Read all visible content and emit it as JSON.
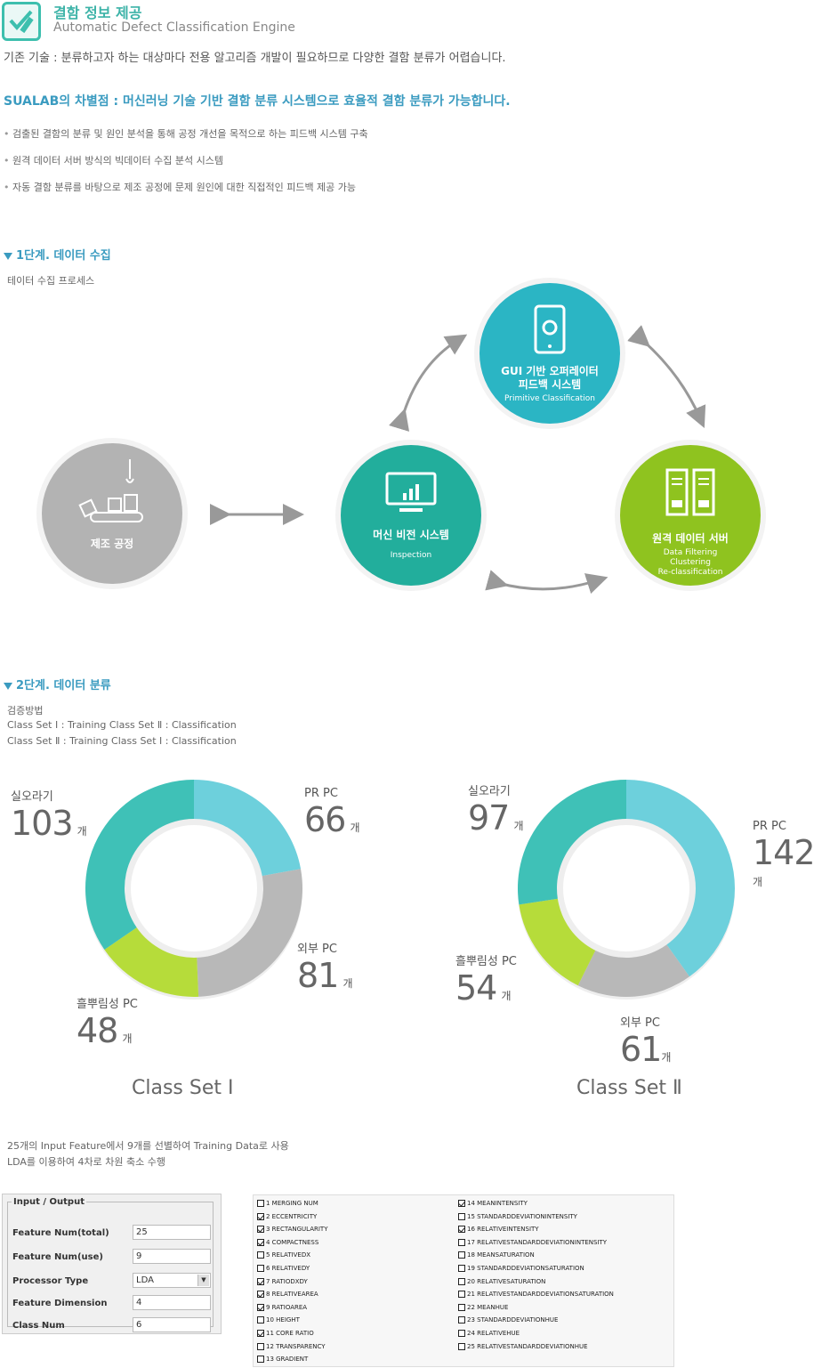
{
  "header": {
    "title_ko": "결함 정보 제공",
    "title_en": "Automatic Defect Classification Engine"
  },
  "existing": "기존 기술 : 분류하고자 하는 대상마다 전용 알고리즘 개발이 필요하므로 다양한 결함 분류가 어렵습니다.",
  "sualab": "SUALAB의 차별점 : 머신러닝 기술 기반 결함 분류 시스템으로 효율적 결함 분류가 가능합니다.",
  "bullets": [
    "검출된 결함의 분류 및 원인 분석을 통해 공정 개선을 목적으로 하는 피드백 시스템 구축",
    "원격 데이터 서버 방식의 빅데이터 수집 분석 시스템",
    "자동 결함 분류를 바탕으로 제조 공정에 문제 원인에 대한 직접적인 피드백 제공 가능"
  ],
  "step1": {
    "title": "1단계. 데이터 수집",
    "subtitle": "테이터 수집 프로세스"
  },
  "nodes": {
    "gui": {
      "title1": "GUI 기반 오퍼레이터",
      "title2": "피드백 시스템",
      "sub": "Primitive Classification",
      "color": "#2bb5c4",
      "icon": "smartphone-gear-icon"
    },
    "manufacturing": {
      "title": "제조 공정",
      "color": "#b3b3b3",
      "icon": "conveyor-icon"
    },
    "vision": {
      "title": "머신 비전 시스템",
      "sub": "Inspection",
      "color": "#22ae9c",
      "icon": "monitor-chart-icon"
    },
    "server": {
      "title": "원격 데이터 서버",
      "sub1": "Data Filtering",
      "sub2": "Clustering",
      "sub3": "Re-classification",
      "color": "#8fc31f",
      "icon": "server-icon"
    }
  },
  "step2": {
    "title": "2단계. 데이터 분류",
    "method": "검증방법",
    "line1": "Class Set Ⅰ : Training Class Set Ⅱ : Classification",
    "line2": "Class Set Ⅱ : Training Class Set Ⅰ : Classification"
  },
  "unit": "개",
  "chart_data": [
    {
      "type": "pie",
      "title": "Class Set Ⅰ",
      "series": [
        {
          "name": "PR PC",
          "value": 66,
          "color": "#6dd0dc"
        },
        {
          "name": "외부 PC",
          "value": 81,
          "color": "#b8b8b8"
        },
        {
          "name": "흘뿌림성 PC",
          "value": 48,
          "color": "#b6dc3a"
        },
        {
          "name": "실오라기",
          "value": 103,
          "color": "#3fc1b7"
        }
      ]
    },
    {
      "type": "pie",
      "title": "Class Set Ⅱ",
      "series": [
        {
          "name": "PR PC",
          "value": 142,
          "color": "#6dd0dc"
        },
        {
          "name": "외부 PC",
          "value": 61,
          "color": "#b8b8b8"
        },
        {
          "name": "흘뿌림성 PC",
          "value": 54,
          "color": "#b6dc3a"
        },
        {
          "name": "실오라기",
          "value": 97,
          "color": "#3fc1b7"
        }
      ]
    }
  ],
  "features_note1": "25개의 Input Feature에서 9개를 선별하여 Training Data로 사용",
  "features_note2": "LDA를 이용하여 4차로 차원 축소 수행",
  "io_panel": {
    "legend": "Input / Output",
    "rows": [
      {
        "label": "Feature Num(total)",
        "value": "25"
      },
      {
        "label": "Feature Num(use)",
        "value": "9"
      },
      {
        "label": "Processor Type",
        "value": "LDA"
      },
      {
        "label": "Feature Dimension",
        "value": "4"
      },
      {
        "label": "Class Num",
        "value": "6"
      }
    ]
  },
  "features_left": [
    {
      "label": "1 MERGING NUM",
      "checked": false
    },
    {
      "label": "2 ECCENTRICITY",
      "checked": true
    },
    {
      "label": "3 RECTANGULARITY",
      "checked": true
    },
    {
      "label": "4 COMPACTNESS",
      "checked": true
    },
    {
      "label": "5 RELATIVEDX",
      "checked": false
    },
    {
      "label": "6 RELATIVEDY",
      "checked": false
    },
    {
      "label": "7 RATIODXDY",
      "checked": true
    },
    {
      "label": "8 RELATIVEAREA",
      "checked": true
    },
    {
      "label": "9 RATIOAREA",
      "checked": true
    },
    {
      "label": "10 HEIGHT",
      "checked": false
    },
    {
      "label": "11 CORE RATIO",
      "checked": true
    },
    {
      "label": "12 TRANSPARENCY",
      "checked": false
    },
    {
      "label": "13 GRADIENT",
      "checked": false
    }
  ],
  "features_right": [
    {
      "label": "14 MEANINTENSITY",
      "checked": true
    },
    {
      "label": "15 STANDARDDEVIATIONINTENSITY",
      "checked": false
    },
    {
      "label": "16 RELATIVEINTENSITY",
      "checked": true
    },
    {
      "label": "17 RELATIVESTANDARDDEVIATIONINTENSITY",
      "checked": false
    },
    {
      "label": "18 MEANSATURATION",
      "checked": false
    },
    {
      "label": "19 STANDARDDEVIATIONSATURATION",
      "checked": false
    },
    {
      "label": "20 RELATIVESATURATION",
      "checked": false
    },
    {
      "label": "21 RELATIVESTANDARDDEVIATIONSATURATION",
      "checked": false
    },
    {
      "label": "22 MEANHUE",
      "checked": false
    },
    {
      "label": "23 STANDARDDEVIATIONHUE",
      "checked": false
    },
    {
      "label": "24 RELATIVEHUE",
      "checked": false
    },
    {
      "label": "25 RELATIVESTANDARDDEVIATIONHUE",
      "checked": false
    }
  ]
}
